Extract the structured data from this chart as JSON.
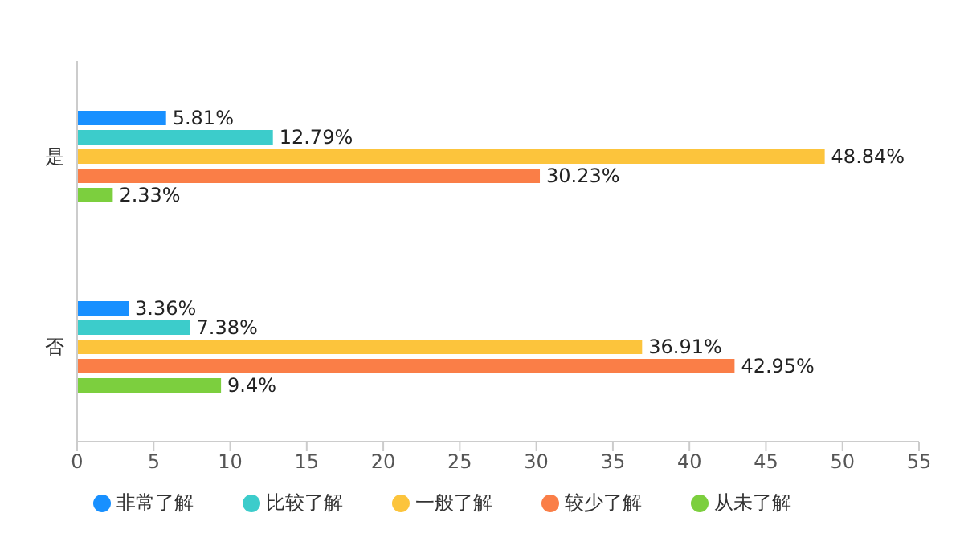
{
  "chart_data": {
    "type": "bar",
    "orientation": "horizontal",
    "categories": [
      "是",
      "否"
    ],
    "series": [
      {
        "name": "非常了解",
        "color": "#1890ff",
        "values": [
          5.81,
          3.36
        ],
        "value_labels": [
          "5.81%",
          "3.36%"
        ]
      },
      {
        "name": "比较了解",
        "color": "#3ccccb",
        "values": [
          12.79,
          7.38
        ],
        "value_labels": [
          "12.79%",
          "7.38%"
        ]
      },
      {
        "name": "一般了解",
        "color": "#fcc43c",
        "values": [
          48.84,
          36.91
        ],
        "value_labels": [
          "48.84%",
          "36.91%"
        ]
      },
      {
        "name": "较少了解",
        "color": "#fa7e47",
        "values": [
          30.23,
          42.95
        ],
        "value_labels": [
          "30.23%",
          "42.95%"
        ]
      },
      {
        "name": "从未了解",
        "color": "#7ccf3e",
        "values": [
          2.33,
          9.4
        ],
        "value_labels": [
          "2.33%",
          "9.4%"
        ]
      }
    ],
    "xlim": [
      0,
      55
    ],
    "xticks": [
      0,
      5,
      10,
      15,
      20,
      25,
      30,
      35,
      40,
      45,
      50,
      55
    ],
    "grid": false,
    "legend": "bottom"
  }
}
